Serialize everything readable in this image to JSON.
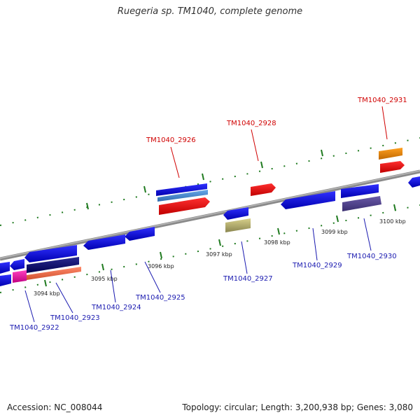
{
  "title": "Ruegeria sp. TM1040, complete genome",
  "footer": {
    "accession": "Accession: NC_008044",
    "summary": "Topology: circular; Length: 3,200,938 bp; Genes: 3,080"
  },
  "colors": {
    "backbone": "#8a8a8a",
    "tick_dash": "#1f7a1f",
    "label_top": "#d00000",
    "label_bottom": "#1a1ab0"
  },
  "scale_ticks": [
    "3094 kbp",
    "3095 kbp",
    "3096 kbp",
    "3097 kbp",
    "3098 kbp",
    "3099 kbp",
    "3100 kbp"
  ],
  "genes": [
    {
      "label": "TM1040_2922",
      "color": "#1a1ab0"
    },
    {
      "label": "TM1040_2923",
      "color": "#1a1ab0"
    },
    {
      "label": "TM1040_2924",
      "color": "#1a1ab0"
    },
    {
      "label": "TM1040_2925",
      "color": "#1a1ab0"
    },
    {
      "label": "TM1040_2926",
      "color": "#d00000"
    },
    {
      "label": "TM1040_2927",
      "color": "#1a1ab0"
    },
    {
      "label": "TM1040_2928",
      "color": "#d00000"
    },
    {
      "label": "TM1040_2929",
      "color": "#1a1ab0"
    },
    {
      "label": "TM1040_2930",
      "color": "#1a1ab0"
    },
    {
      "label": "TM1040_2931",
      "color": "#d00000"
    }
  ]
}
